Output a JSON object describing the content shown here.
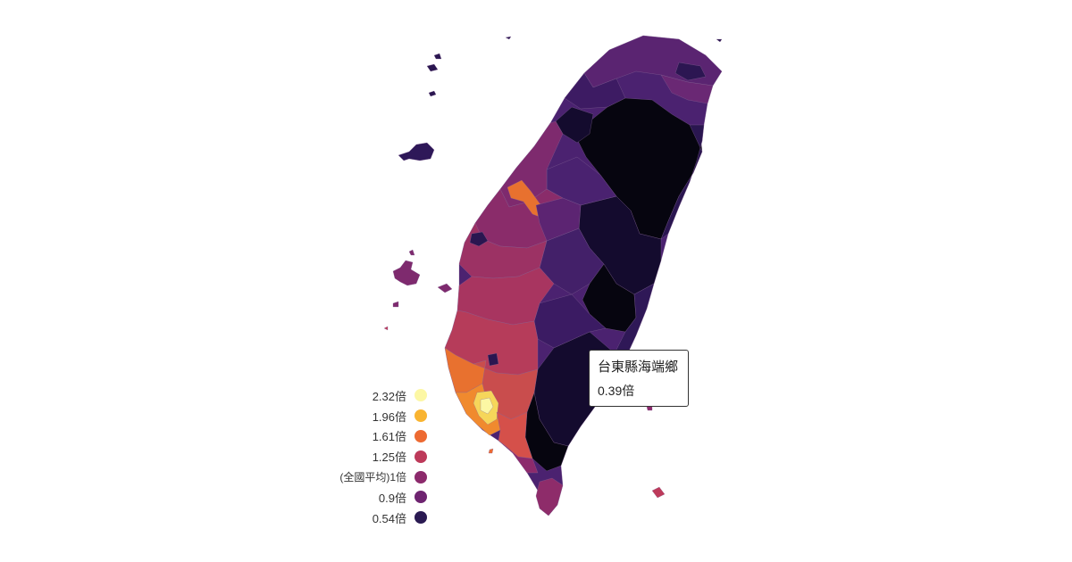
{
  "legend": {
    "items": [
      {
        "label": "2.32倍",
        "color": "#fcf7a4"
      },
      {
        "label": "1.96倍",
        "color": "#f9b431"
      },
      {
        "label": "1.61倍",
        "color": "#ed6a32"
      },
      {
        "label": "1.25倍",
        "color": "#bd3a5a"
      },
      {
        "label": "(全國平均)1倍",
        "color": "#8c2a6c"
      },
      {
        "label": "0.9倍",
        "color": "#6e2470"
      },
      {
        "label": "0.54倍",
        "color": "#2a1a52"
      }
    ]
  },
  "tooltip": {
    "name": "台東縣海端鄉",
    "value": "0.39倍"
  },
  "colors": {
    "darkest": "#06050f",
    "very_dark": "#140b2e",
    "dark_purple": "#331a5c",
    "purple": "#4b2270",
    "magenta": "#7e2a6e",
    "crimson": "#a83560",
    "orange": "#e8712f",
    "yellow": "#f6d65a"
  }
}
